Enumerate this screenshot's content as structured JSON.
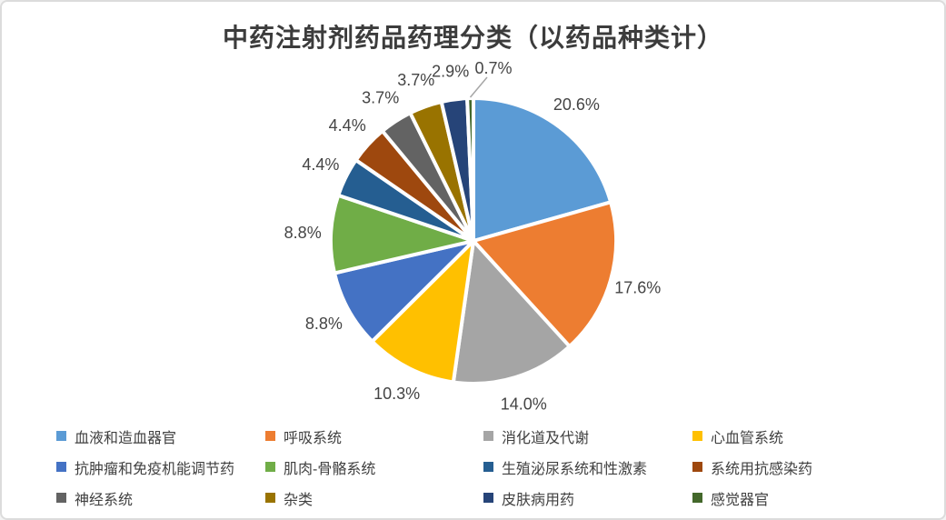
{
  "chart": {
    "title": "中药注射剂药品药理分类（以药品种类计）"
  },
  "chart_data": {
    "type": "pie",
    "title": "中药注射剂药品药理分类（以药品种类计）",
    "start_angle_deg": 0,
    "direction": "clockwise",
    "legend_position": "bottom",
    "label_position": "outside-end",
    "label_color": "#444444",
    "slice_border_color": "#ffffff",
    "leader_line_color": "#a6a6a6",
    "slices": [
      {
        "label": "血液和造血器官",
        "value": 20.6,
        "display": "20.6%",
        "color": "#5B9BD5"
      },
      {
        "label": "呼吸系统",
        "value": 17.6,
        "display": "17.6%",
        "color": "#ED7D31"
      },
      {
        "label": "消化道及代谢",
        "value": 14.0,
        "display": "14.0%",
        "color": "#A5A5A5"
      },
      {
        "label": "心血管系统",
        "value": 10.3,
        "display": "10.3%",
        "color": "#FFC000"
      },
      {
        "label": "抗肿瘤和免疫机能调节药",
        "value": 8.8,
        "display": "8.8%",
        "color": "#4472C4"
      },
      {
        "label": "肌肉-骨骼系统",
        "value": 8.8,
        "display": "8.8%",
        "color": "#70AD47"
      },
      {
        "label": "生殖泌尿系统和性激素",
        "value": 4.4,
        "display": "4.4%",
        "color": "#255E91"
      },
      {
        "label": "系统用抗感染药",
        "value": 4.4,
        "display": "4.4%",
        "color": "#9E480E"
      },
      {
        "label": "神经系统",
        "value": 3.7,
        "display": "3.7%",
        "color": "#636363"
      },
      {
        "label": "杂类",
        "value": 3.7,
        "display": "3.7%",
        "color": "#997300"
      },
      {
        "label": "皮肤病用药",
        "value": 2.9,
        "display": "2.9%",
        "color": "#264478"
      },
      {
        "label": "感觉器官",
        "value": 0.7,
        "display": "0.7%",
        "color": "#43682B",
        "leader_line": true
      }
    ]
  }
}
